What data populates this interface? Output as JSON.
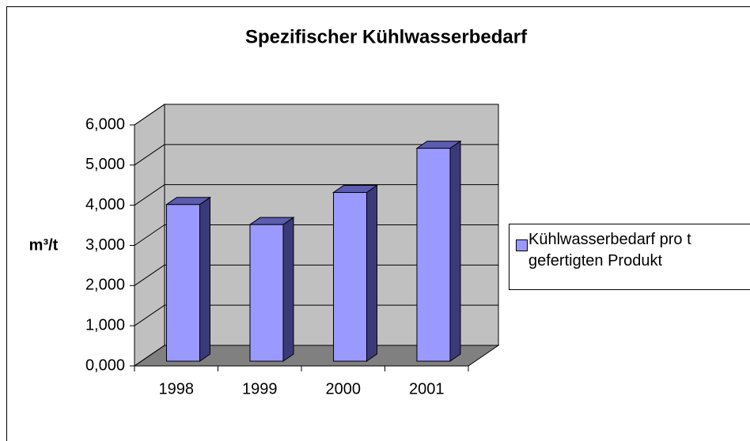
{
  "chart_data": {
    "type": "bar",
    "title": "Spezifischer Kühlwasserbedarf",
    "y_label": "m³/t",
    "categories": [
      "1998",
      "1999",
      "2000",
      "2001"
    ],
    "series": [
      {
        "name": "Kühlwasserbedarf pro t gefertigten Produkt",
        "color": "#9999ff",
        "values": [
          3.9,
          3.4,
          4.2,
          5.3
        ]
      }
    ],
    "ylim": [
      0,
      6
    ],
    "yticks": [
      {
        "value": 0,
        "label": "0,000"
      },
      {
        "value": 1,
        "label": "1,000"
      },
      {
        "value": 2,
        "label": "2,000"
      },
      {
        "value": 3,
        "label": "3,000"
      },
      {
        "value": 4,
        "label": "4,000"
      },
      {
        "value": 5,
        "label": "5,000"
      },
      {
        "value": 6,
        "label": "6,000"
      }
    ],
    "grid": true,
    "legend": "right"
  }
}
